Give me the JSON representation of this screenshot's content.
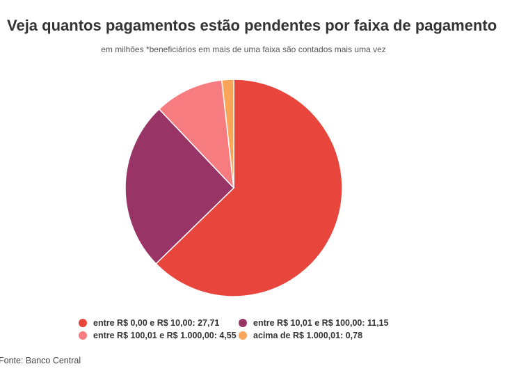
{
  "title": "Veja quantos pagamentos estão pendentes por faixa de pagamento",
  "subtitle": "em milhões *beneficiários em mais de uma faixa são contados mais uma vez",
  "source": "Fonte: Banco Central",
  "chart_data": {
    "type": "pie",
    "categories": [
      "entre R$ 0,00 e R$ 10,00",
      "entre R$ 10,01 e R$ 100,00",
      "entre R$ 100,01 e R$ 1.000,00",
      "acima de R$ 1.000,01"
    ],
    "values": [
      27.71,
      11.15,
      4.55,
      0.78
    ],
    "colors": [
      "#e8453c",
      "#993566",
      "#f77c80",
      "#f9a55a"
    ],
    "legend_labels": [
      "entre R$ 0,00 e R$ 10,00: 27,71",
      "entre R$ 10,01 e R$ 100,00: 11,15",
      "entre R$ 100,01 e R$ 1.000,00: 4,55",
      "acima de R$ 1.000,01: 0,78"
    ],
    "title": "Veja quantos pagamentos estão pendentes por faixa de pagamento",
    "start_angle": "12 o'clock",
    "direction": "clockwise",
    "legend_position": "bottom"
  }
}
